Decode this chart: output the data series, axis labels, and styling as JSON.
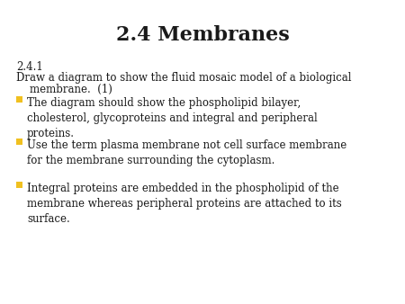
{
  "title": "2.4 Membranes",
  "title_fontsize": 16,
  "title_fontweight": "bold",
  "background_color": "#ffffff",
  "text_color": "#1a1a1a",
  "bullet_color": "#f0c020",
  "subtitle": "2.4.1",
  "subtitle_fontsize": 8.5,
  "intro_line1": "Draw a diagram to show the fluid mosaic model of a biological",
  "intro_line2": "    membrane.  (1)",
  "intro_fontsize": 8.5,
  "bullets": [
    "The diagram should show the phospholipid bilayer,\ncholesterol, glycoproteins and integral and peripheral\nproteins.",
    "Use the term plasma membrane not cell surface membrane\nfor the membrane surrounding the cytoplasm.",
    "Integral proteins are embedded in the phospholipid of the\nmembrane whereas peripheral proteins are attached to its\nsurface."
  ],
  "bullet_fontsize": 8.5
}
